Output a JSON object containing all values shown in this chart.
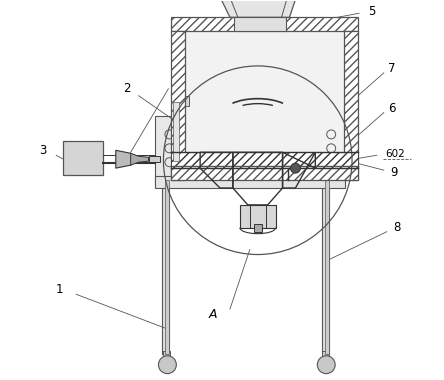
{
  "bg_color": "#ffffff",
  "lc": "#555555",
  "lc_dark": "#333333",
  "lw": 0.7,
  "hatch_lw": 0.5
}
